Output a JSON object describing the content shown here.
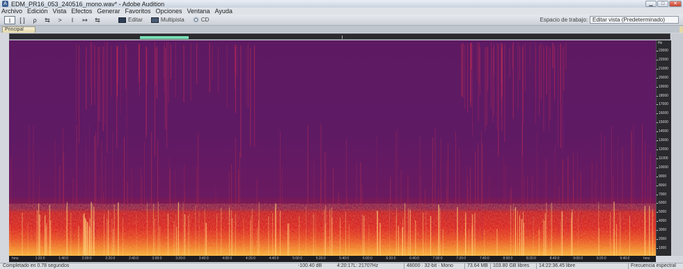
{
  "window": {
    "title": "EDM_PR16_053_240516_mono.wav* - Adobe Audition",
    "controls": [
      "minimize",
      "maximize",
      "close"
    ]
  },
  "menu": [
    "Archivo",
    "Edición",
    "Vista",
    "Efectos",
    "Generar",
    "Favoritos",
    "Opciones",
    "Ventana",
    "Ayuda"
  ],
  "toolbar": {
    "tools": [
      {
        "icon": "time-selection-icon",
        "glyph": "I"
      },
      {
        "icon": "marquee-icon",
        "glyph": "[ ]"
      },
      {
        "icon": "lasso-icon",
        "glyph": "ρ"
      },
      {
        "icon": "move-icon",
        "glyph": "⇆"
      },
      {
        "icon": "scrub-icon",
        "glyph": ">"
      },
      {
        "icon": "hybrid-icon",
        "glyph": "I"
      },
      {
        "icon": "spot-heal-icon",
        "glyph": "↦"
      },
      {
        "icon": "razor-icon",
        "glyph": "⇆"
      }
    ],
    "edit_label": "Editar",
    "multitrack_label": "Multipista",
    "cd_label": "CD",
    "workspace_label": "Espacio de trabajo:",
    "workspace_value": "Editar vista (Predeterminado)"
  },
  "tab": {
    "label": "Principal"
  },
  "overview": {
    "view_start_fraction": 0.197,
    "view_end_fraction": 0.271,
    "playhead_fraction": 0.502
  },
  "ruler": {
    "unit": "Hz",
    "ticks": [
      "23000",
      "22000",
      "21000",
      "20000",
      "19000",
      "18000",
      "17000",
      "16000",
      "15000",
      "14000",
      "13000",
      "12000",
      "11000",
      "10000",
      "9000",
      "8000",
      "7000",
      "6000",
      "5000",
      "4000",
      "3000",
      "2000",
      "1000"
    ]
  },
  "timeline": {
    "ticks": [
      "hms",
      "1:20:0",
      "1:40:0",
      "2:00:0",
      "2:20:0",
      "2:40:0",
      "3:00:0",
      "3:20:0",
      "3:40:0",
      "4:00:0",
      "4:20:0",
      "4:40:0",
      "5:00:0",
      "5:20:0",
      "5:40:0",
      "6:00:0",
      "6:20:0",
      "6:40:0",
      "7:00:0",
      "7:20:0",
      "7:40:0",
      "8:00:0",
      "8:20:0",
      "8:40:0",
      "9:00:0",
      "9:20:0",
      "9:40:0",
      "hms"
    ]
  },
  "status": {
    "left": "Completado en 0.78 segundos",
    "level": "-100.40 dB",
    "cursor": "4:20:17L: 21707Hz",
    "format": "48000 · 32-bit · Mono",
    "size": "73.64 MB",
    "free1": "103.80 GB libres",
    "free2": "14:22:36.45 libre",
    "right": "Frecuencia espectral"
  },
  "colors": {
    "spectro_bg": "#641a66",
    "spectro_low": "#d41a24",
    "spectro_hot": "#f6b63a",
    "overview_thumb": "#79e0b5"
  }
}
